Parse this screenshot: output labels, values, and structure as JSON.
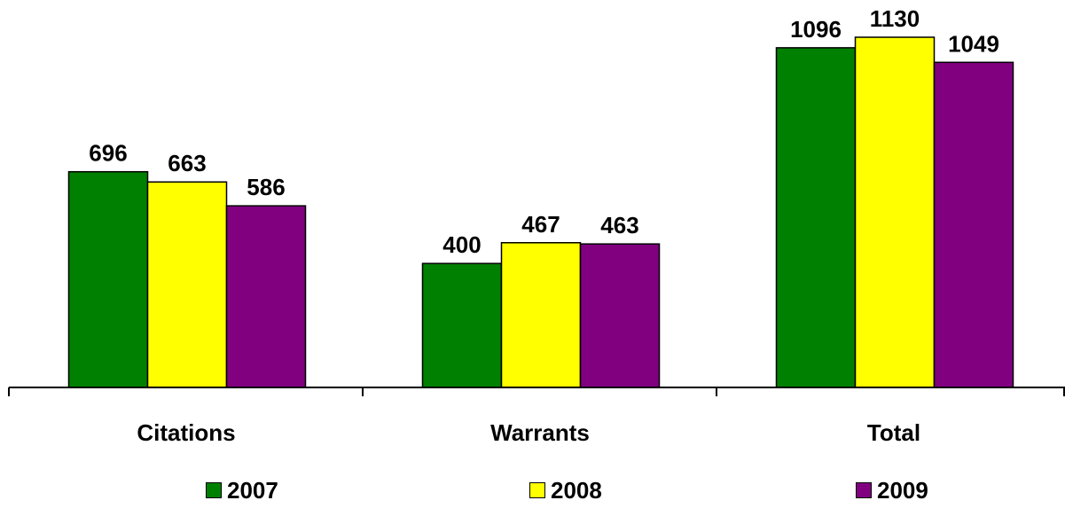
{
  "chart_data": {
    "type": "bar",
    "categories": [
      "Citations",
      "Warrants",
      "Total"
    ],
    "series": [
      {
        "name": "2007",
        "color": "#008000",
        "values": [
          696,
          400,
          1096
        ]
      },
      {
        "name": "2008",
        "color": "#FFFF00",
        "values": [
          663,
          467,
          1130
        ]
      },
      {
        "name": "2009",
        "color": "#800080",
        "values": [
          586,
          463,
          1049
        ]
      }
    ],
    "title": "",
    "xlabel": "",
    "ylabel": "",
    "ylim": [
      0,
      1130
    ],
    "grid": false,
    "legend_position": "bottom"
  }
}
